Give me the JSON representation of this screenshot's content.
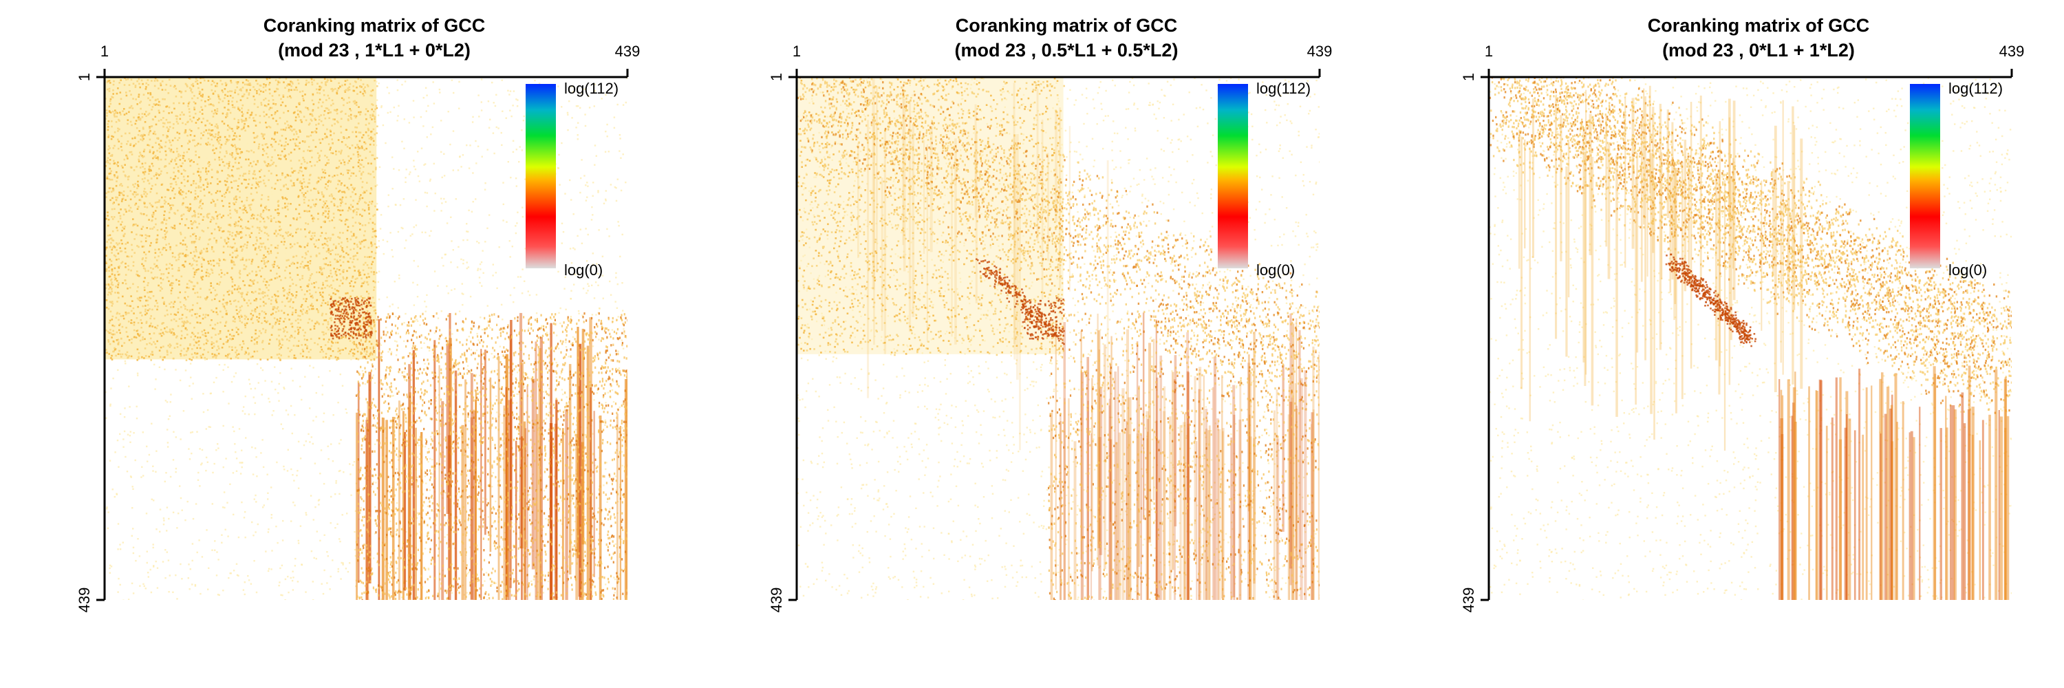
{
  "panels": [
    {
      "title_line1": "Coranking matrix of GCC",
      "title_line2": "(mod 23 , 1*L1 + 0*L2)",
      "chart_data": {
        "type": "heatmap",
        "title": "Coranking matrix of GCC (mod 23 , 1*L1 + 0*L2)",
        "x_range": [
          1,
          439
        ],
        "y_range": [
          1,
          439
        ],
        "x_ticks": [
          "1",
          "439"
        ],
        "y_ticks": [
          "1",
          "439"
        ],
        "weights": {
          "L1": 1,
          "L2": 0
        },
        "colorscale": {
          "min_label": "log(0)",
          "max_label": "log(112)",
          "min": 0,
          "max": 112,
          "scale": "log"
        }
      }
    },
    {
      "title_line1": "Coranking matrix of GCC",
      "title_line2": "(mod 23 , 0.5*L1 + 0.5*L2)",
      "chart_data": {
        "type": "heatmap",
        "title": "Coranking matrix of GCC (mod 23 , 0.5*L1 + 0.5*L2)",
        "x_range": [
          1,
          439
        ],
        "y_range": [
          1,
          439
        ],
        "x_ticks": [
          "1",
          "439"
        ],
        "y_ticks": [
          "1",
          "439"
        ],
        "weights": {
          "L1": 0.5,
          "L2": 0.5
        },
        "colorscale": {
          "min_label": "log(0)",
          "max_label": "log(112)",
          "min": 0,
          "max": 112,
          "scale": "log"
        }
      }
    },
    {
      "title_line1": "Coranking matrix of GCC",
      "title_line2": "(mod 23 , 0*L1 + 1*L2)",
      "chart_data": {
        "type": "heatmap",
        "title": "Coranking matrix of GCC (mod 23 , 0*L1 + 1*L2)",
        "x_range": [
          1,
          439
        ],
        "y_range": [
          1,
          439
        ],
        "x_ticks": [
          "1",
          "439"
        ],
        "y_ticks": [
          "1",
          "439"
        ],
        "weights": {
          "L1": 0,
          "L2": 1
        },
        "colorscale": {
          "min_label": "log(0)",
          "max_label": "log(112)",
          "min": 0,
          "max": 112,
          "scale": "log"
        }
      }
    }
  ]
}
